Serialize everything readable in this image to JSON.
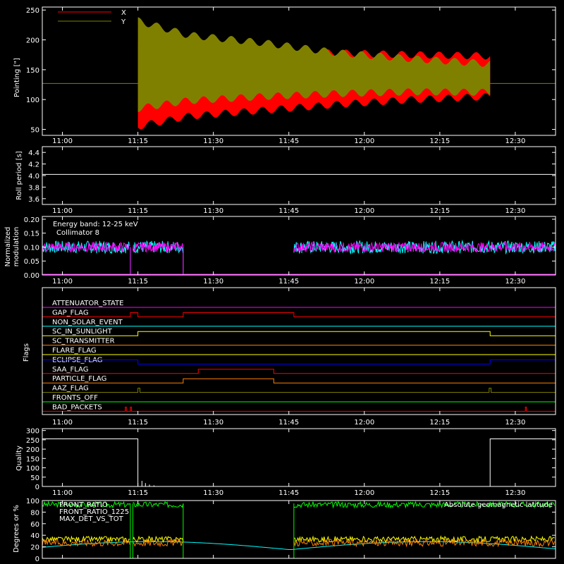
{
  "chart_data": [
    {
      "type": "area",
      "ylabel": "Pointing [\"]",
      "yticks": [
        50,
        100,
        150,
        200,
        250
      ],
      "ylim": [
        40,
        255
      ],
      "time_ticks": [
        "11:00",
        "11:15",
        "11:30",
        "11:45",
        "12:00",
        "12:15",
        "12:30"
      ],
      "xlim_min": [
        -4,
        42
      ],
      "series": [
        {
          "name": "X",
          "color": "#ff0000",
          "baseline": 127,
          "start_min": 15,
          "end_min": 85,
          "upper_env": [
            [
              15,
              195
            ],
            [
              25,
              185
            ],
            [
              40,
              180
            ],
            [
              55,
              178
            ],
            [
              70,
              175
            ],
            [
              85,
              173
            ]
          ],
          "lower_env": [
            [
              15,
              55
            ],
            [
              25,
              72
            ],
            [
              40,
              82
            ],
            [
              55,
              92
            ],
            [
              70,
              100
            ],
            [
              85,
              105
            ]
          ]
        },
        {
          "name": "Y",
          "color": "#808000",
          "baseline": 127,
          "start_min": 15,
          "end_min": 85,
          "upper_env": [
            [
              15,
              232
            ],
            [
              25,
              208
            ],
            [
              40,
              195
            ],
            [
              55,
              178
            ],
            [
              70,
              168
            ],
            [
              85,
              160
            ]
          ],
          "lower_env": [
            [
              15,
              85
            ],
            [
              25,
              98
            ],
            [
              40,
              105
            ],
            [
              55,
              110
            ],
            [
              70,
              113
            ],
            [
              85,
              112
            ]
          ]
        }
      ]
    },
    {
      "type": "line",
      "ylabel": "Roll period [s]",
      "yticks": [
        "3.6",
        "3.8",
        "4.0",
        "4.2",
        "4.4"
      ],
      "ylim": [
        3.5,
        4.5
      ],
      "series": [
        {
          "values_constant": 4.02,
          "color": "#ffffff"
        }
      ]
    },
    {
      "type": "line",
      "ylabel": "Normalized modulation",
      "legend": [
        "Energy band: 12-25 keV",
        "Collimator 8"
      ],
      "yticks": [
        "0.00",
        "0.05",
        "0.10",
        "0.15",
        "0.20"
      ],
      "ylim": [
        0,
        0.21
      ],
      "segments_min": [
        [
          -4,
          13.5
        ],
        [
          14,
          24
        ],
        [
          46,
          98
        ]
      ],
      "typical_value": 0.1,
      "colors": {
        "collimator": "#00ffff",
        "band": "#ff00ff"
      }
    },
    {
      "type": "line",
      "ylabel": "Flags",
      "flags": [
        {
          "name": "ATTENUATOR_STATE",
          "color": "#ff00ff",
          "steps": []
        },
        {
          "name": "GAP_FLAG",
          "color": "#ff0000",
          "steps": [
            [
              13.5,
              15
            ],
            [
              24,
              46
            ]
          ]
        },
        {
          "name": "NON_SOLAR_EVENT",
          "color": "#00ffff",
          "steps": []
        },
        {
          "name": "SC_IN_SUNLIGHT",
          "color": "#ffff00",
          "steps": [
            [
              15,
              85
            ]
          ]
        },
        {
          "name": "SC_TRANSMITTER",
          "color": "#ff8000",
          "steps": []
        },
        {
          "name": "FLARE_FLAG",
          "color": "#ffff00",
          "steps": []
        },
        {
          "name": "ECLIPSE_FLAG",
          "color": "#0000ff",
          "steps": [
            [
              -4,
              15
            ],
            [
              85,
              98
            ]
          ]
        },
        {
          "name": "SAA_FLAG",
          "color": "#ff0000",
          "steps": [
            [
              27,
              42
            ]
          ]
        },
        {
          "name": "PARTICLE_FLAG",
          "color": "#ff8000",
          "steps": [
            [
              24,
              42
            ]
          ]
        },
        {
          "name": "AAZ_FLAG",
          "color": "#808000",
          "steps": [
            [
              15,
              15.4
            ],
            [
              84.8,
              85.2
            ]
          ]
        },
        {
          "name": "FRONTS_OFF",
          "color": "#00ff00",
          "steps": []
        },
        {
          "name": "BAD_PACKETS",
          "color": "#ff0000",
          "steps": [
            [
              12.5,
              12.7
            ],
            [
              13.5,
              13.7
            ],
            [
              92,
              92.2
            ]
          ]
        }
      ]
    },
    {
      "type": "line",
      "ylabel": "Quality",
      "yticks": [
        0,
        50,
        100,
        150,
        200,
        250,
        300
      ],
      "ylim": [
        0,
        310
      ],
      "segments": [
        [
          -4,
          15,
          255
        ],
        [
          15,
          85,
          0
        ],
        [
          85,
          98,
          255
        ]
      ]
    },
    {
      "type": "line",
      "ylabel": "Degrees or %",
      "yticks": [
        0,
        20,
        40,
        60,
        80,
        100
      ],
      "ylim": [
        0,
        100
      ],
      "legend": [
        {
          "name": "FRONT_RATIO",
          "color": "#00ff00"
        },
        {
          "name": "FRONT_RATIO_1225",
          "color": "#00ff00"
        },
        {
          "name": "MAX_DET_VS_TOT",
          "color": "#ff8000"
        }
      ],
      "annotation": "Absolute geomagnetic latitude",
      "annotation_color": "#00ffff"
    }
  ],
  "colors": {
    "background": "#000000",
    "axes": "#ffffff"
  }
}
